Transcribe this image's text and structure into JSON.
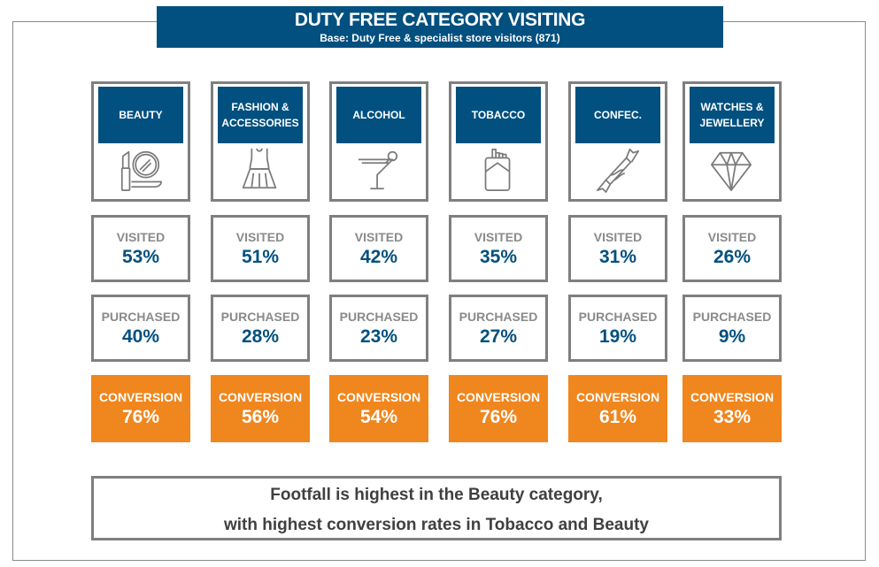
{
  "title": "DUTY FREE CATEGORY VISITING",
  "subtitle": "Base: Duty Free & specialist store visitors (871)",
  "labels": {
    "visited": "VISITED",
    "purchased": "PURCHASED",
    "conversion": "CONVERSION"
  },
  "colors": {
    "blue": "#02507f",
    "orange": "#f0861e",
    "border": "#7f7f7f"
  },
  "categories": [
    {
      "name": "BEAUTY",
      "icon": "lipstick-mirror-icon",
      "visited": "53%",
      "purchased": "40%",
      "conversion": "76%"
    },
    {
      "name": "FASHION & ACCESSORIES",
      "icon": "dress-icon",
      "visited": "51%",
      "purchased": "28%",
      "conversion": "56%"
    },
    {
      "name": "ALCOHOL",
      "icon": "cocktail-icon",
      "visited": "42%",
      "purchased": "23%",
      "conversion": "54%"
    },
    {
      "name": "TOBACCO",
      "icon": "cigarette-pack-icon",
      "visited": "35%",
      "purchased": "27%",
      "conversion": "76%"
    },
    {
      "name": "CONFEC.",
      "icon": "candy-icon",
      "visited": "31%",
      "purchased": "19%",
      "conversion": "61%"
    },
    {
      "name": "WATCHES & JEWELLERY",
      "icon": "diamond-icon",
      "visited": "26%",
      "purchased": "9%",
      "conversion": "33%"
    }
  ],
  "footer": {
    "line1": "Footfall is highest in the Beauty category,",
    "line2": "with highest conversion rates in Tobacco and Beauty"
  }
}
